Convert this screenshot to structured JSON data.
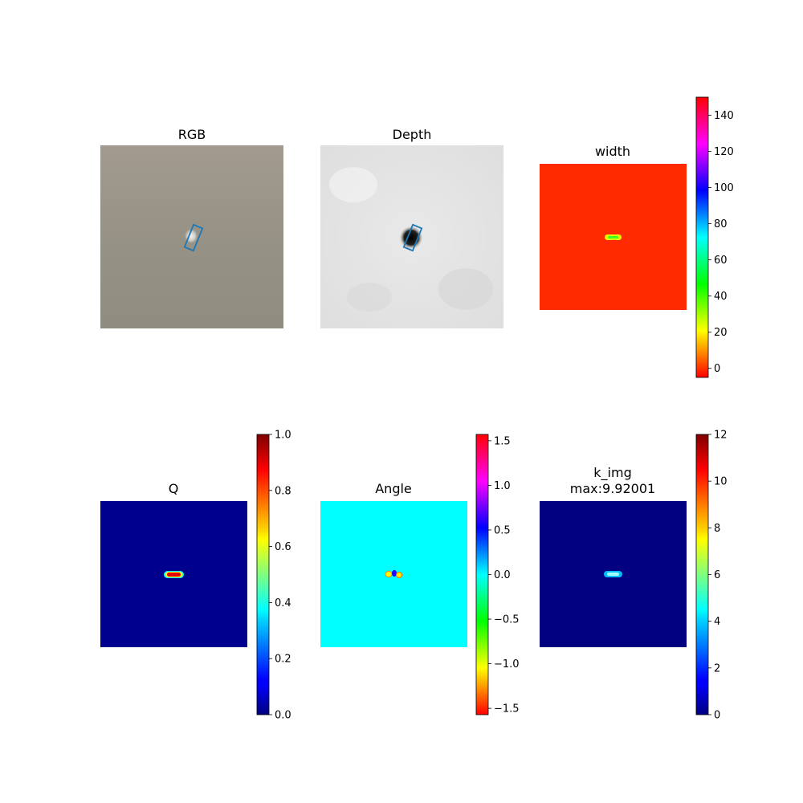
{
  "chart_data": [
    {
      "type": "heatmap",
      "title": "RGB",
      "content": "rgb-image",
      "grasp_box": true,
      "colorbar": null
    },
    {
      "type": "heatmap",
      "title": "Depth",
      "content": "depth-image",
      "grasp_box": true,
      "colorbar": null
    },
    {
      "type": "heatmap",
      "title": "width",
      "content": "width-map",
      "colormap": "hsv",
      "colorbar": {
        "range": [
          -5,
          150
        ],
        "ticks": [
          "0",
          "20",
          "40",
          "60",
          "80",
          "100",
          "120",
          "140"
        ],
        "tick_values": [
          0,
          20,
          40,
          60,
          80,
          100,
          120,
          140
        ]
      }
    },
    {
      "type": "heatmap",
      "title": "Q",
      "content": "q-map",
      "colormap": "jet",
      "colorbar": {
        "range": [
          0,
          1
        ],
        "ticks": [
          "0.0",
          "0.2",
          "0.4",
          "0.6",
          "0.8",
          "1.0"
        ],
        "tick_values": [
          0,
          0.2,
          0.4,
          0.6,
          0.8,
          1.0
        ]
      }
    },
    {
      "type": "heatmap",
      "title": "Angle",
      "content": "angle-map",
      "colormap": "hsv",
      "colorbar": {
        "range": [
          -1.5708,
          1.5708
        ],
        "ticks": [
          "−1.5",
          "−1.0",
          "−0.5",
          "0.0",
          "0.5",
          "1.0",
          "1.5"
        ],
        "tick_values": [
          -1.5,
          -1.0,
          -0.5,
          0.0,
          0.5,
          1.0,
          1.5
        ]
      }
    },
    {
      "type": "heatmap",
      "title": "k_img",
      "subtitle": "max:9.92001",
      "content": "k-map",
      "colormap": "jet",
      "colorbar": {
        "range": [
          0,
          12
        ],
        "ticks": [
          "0",
          "2",
          "4",
          "6",
          "8",
          "10",
          "12"
        ],
        "tick_values": [
          0,
          2,
          4,
          6,
          8,
          10,
          12
        ]
      }
    }
  ],
  "colors": {
    "rgb_background": "#9a9388",
    "depth_background": "#e4e4e4",
    "width_background": "#ff2a00",
    "q_background": "#00008f",
    "angle_background": "#00ffff",
    "k_background": "#000080",
    "grasp_box": "#1f77b4"
  }
}
